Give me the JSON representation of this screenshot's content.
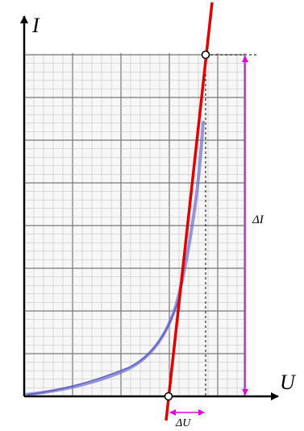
{
  "axes": {
    "y_label": "I",
    "x_label": "U"
  },
  "annotations": {
    "delta_i": "ΔI",
    "delta_u": "ΔU"
  }
}
